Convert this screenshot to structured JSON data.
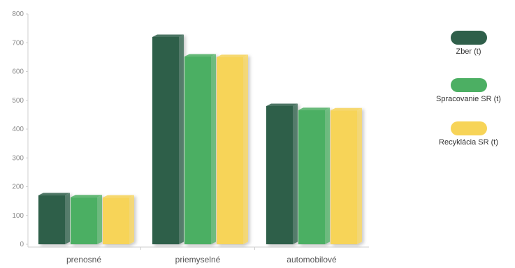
{
  "chart_data": {
    "type": "bar",
    "categories": [
      "prenosné",
      "priemyselné",
      "automobilové"
    ],
    "series": [
      {
        "name": "Zber (t)",
        "values": [
          170,
          720,
          480
        ],
        "color": "#2f5f4a"
      },
      {
        "name": "Spracovanie SR (t)",
        "values": [
          163,
          652,
          466
        ],
        "color": "#4caf63"
      },
      {
        "name": "Recyklácia SR (t)",
        "values": [
          162,
          650,
          465
        ],
        "color": "#f7d458"
      }
    ],
    "yticks": [
      "0",
      "100",
      "200",
      "300",
      "400",
      "500",
      "600",
      "700",
      "800"
    ],
    "ylim": [
      0,
      800
    ],
    "grid": false,
    "legend_position": "right"
  }
}
